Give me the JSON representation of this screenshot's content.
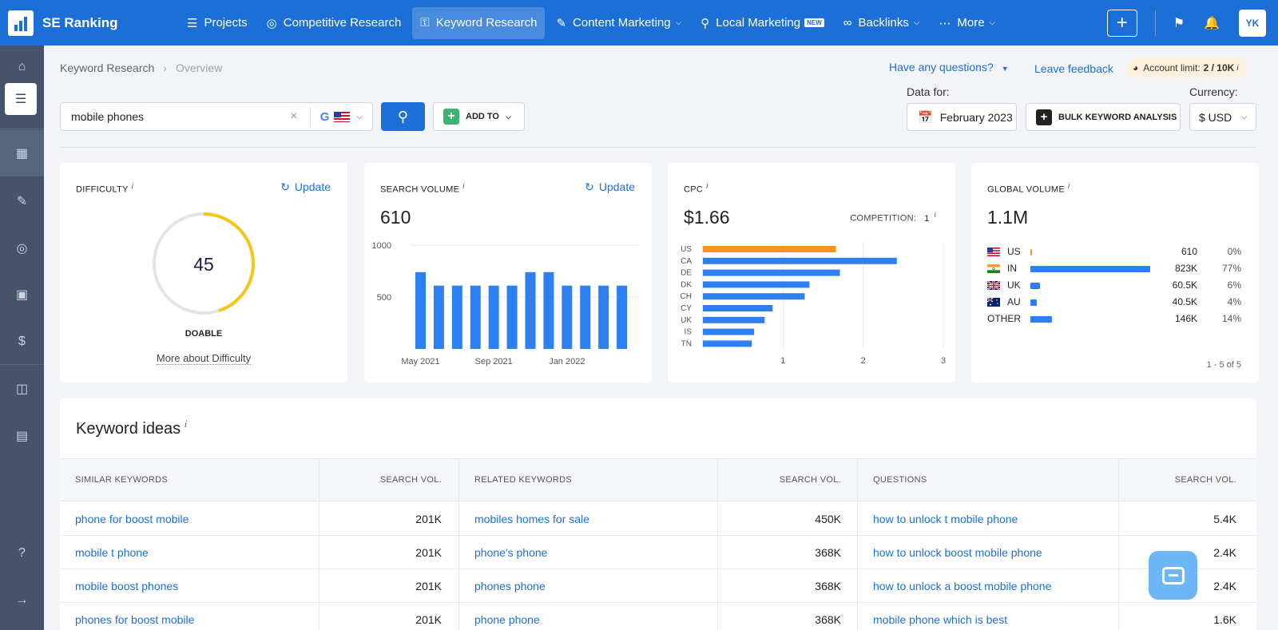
{
  "app": {
    "brand": "SE Ranking",
    "avatar_initials": "YK"
  },
  "nav": {
    "items": [
      {
        "label": "Projects",
        "icon": "layers-icon"
      },
      {
        "label": "Competitive Research",
        "icon": "target-icon"
      },
      {
        "label": "Keyword Research",
        "icon": "key-icon",
        "active": true
      },
      {
        "label": "Content Marketing",
        "icon": "edit-icon",
        "has_dropdown": true
      },
      {
        "label": "Local Marketing",
        "icon": "pin-icon",
        "badge": "NEW"
      },
      {
        "label": "Backlinks",
        "icon": "link-icon",
        "has_dropdown": true
      },
      {
        "label": "More",
        "icon": "dots-icon",
        "has_dropdown": true
      }
    ]
  },
  "breadcrumb": {
    "parent": "Keyword Research",
    "current": "Overview"
  },
  "header": {
    "questions": "Have any questions?",
    "feedback": "Leave feedback",
    "account_limit_label": "Account limit:",
    "account_limit_value": "2 / 10K",
    "data_for_label": "Data for:",
    "currency_label": "Currency:"
  },
  "search": {
    "query": "mobile phones",
    "engine": "G",
    "country": "US"
  },
  "toolbar": {
    "add_to": "ADD TO",
    "date": "February 2023",
    "bulk": "BULK KEYWORD ANALYSIS",
    "currency": "$ USD"
  },
  "difficulty": {
    "title": "DIFFICULTY",
    "update": "Update",
    "value": 45,
    "level": "DOABLE",
    "more": "More about Difficulty",
    "gauge_color": "#f5c518"
  },
  "search_volume": {
    "title": "SEARCH VOLUME",
    "update": "Update",
    "value": "610",
    "chart_data": {
      "type": "bar",
      "y_ticks": [
        "1000",
        "500"
      ],
      "x_ticks": [
        "May 2021",
        "Sep 2021",
        "Jan 2022"
      ],
      "ylim": [
        0,
        1000
      ],
      "values": [
        740,
        610,
        610,
        610,
        610,
        610,
        740,
        740,
        610,
        610,
        610,
        610
      ],
      "color": "#2e7ff0"
    }
  },
  "cpc": {
    "title": "CPC",
    "value": "$1.66",
    "competition_label": "COMPETITION:",
    "competition_value": "1",
    "chart_data": {
      "type": "bar",
      "orientation": "horizontal",
      "categories": [
        "US",
        "CA",
        "DE",
        "DK",
        "CH",
        "CY",
        "UK",
        "IS",
        "TN"
      ],
      "values": [
        1.66,
        2.42,
        1.71,
        1.33,
        1.27,
        0.87,
        0.77,
        0.64,
        0.61
      ],
      "x_ticks": [
        "1",
        "2",
        "3"
      ],
      "xlim": [
        0,
        3
      ],
      "highlight_color": "#f7931e",
      "color": "#2e7ff0"
    }
  },
  "global_volume": {
    "title": "GLOBAL VOLUME",
    "value": "1.1M",
    "rows": [
      {
        "code": "US",
        "value": "610",
        "pct": "0%",
        "share": 0.0
      },
      {
        "code": "IN",
        "value": "823K",
        "pct": "77%",
        "share": 0.77
      },
      {
        "code": "UK",
        "value": "60.5K",
        "pct": "6%",
        "share": 0.06
      },
      {
        "code": "AU",
        "value": "40.5K",
        "pct": "4%",
        "share": 0.04
      },
      {
        "code": "OTHER",
        "value": "146K",
        "pct": "14%",
        "share": 0.14
      }
    ],
    "pager": "1 - 5 of 5"
  },
  "ideas": {
    "title": "Keyword ideas",
    "headers": [
      "SIMILAR KEYWORDS",
      "SEARCH VOL.",
      "RELATED KEYWORDS",
      "SEARCH VOL.",
      "QUESTIONS",
      "SEARCH VOL."
    ],
    "rows": [
      [
        "phone for boost mobile",
        "201K",
        "mobiles homes for sale",
        "450K",
        "how to unlock t mobile phone",
        "5.4K"
      ],
      [
        "mobile t phone",
        "201K",
        "phone's phone",
        "368K",
        "how to unlock boost mobile phone",
        "2.4K"
      ],
      [
        "mobile boost phones",
        "201K",
        "phones phone",
        "368K",
        "how to unlock a boost mobile phone",
        "2.4K"
      ],
      [
        "phones for boost mobile",
        "201K",
        "phone phone",
        "368K",
        "mobile phone which is best",
        "1.6K"
      ]
    ]
  }
}
